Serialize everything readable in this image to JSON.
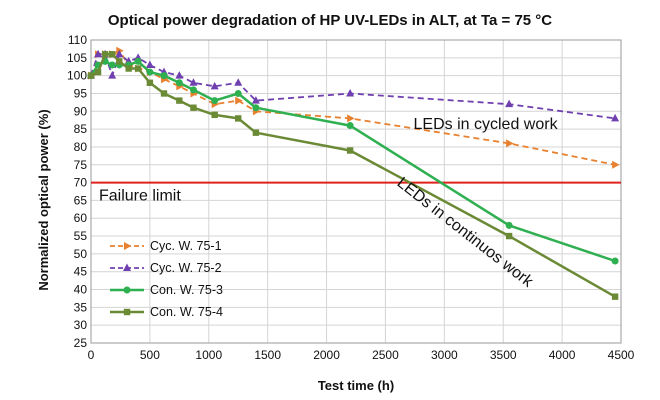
{
  "chart_data": {
    "type": "line",
    "title": "Optical power degradation of HP UV-LEDs in ALT, at Ta = 75 °C",
    "xlabel": "Test time (h)",
    "ylabel": "Normalized optical power (%)",
    "xlim": [
      0,
      4500
    ],
    "ylim": [
      25,
      110
    ],
    "xticks": [
      0,
      500,
      1000,
      1500,
      2000,
      2500,
      3000,
      3500,
      4000,
      4500
    ],
    "yticks": [
      25,
      30,
      35,
      40,
      45,
      50,
      55,
      60,
      65,
      70,
      75,
      80,
      85,
      90,
      95,
      100,
      105,
      110
    ],
    "grid": true,
    "legend_position": "lower-left",
    "series": [
      {
        "name": "Cyc. W. 75-1",
        "color": "#e8812f",
        "line_style": "dashed",
        "marker": "triangle-right",
        "x": [
          0,
          60,
          120,
          180,
          240,
          320,
          400,
          500,
          620,
          750,
          870,
          1050,
          1250,
          1400,
          2200,
          3550,
          4450
        ],
        "y": [
          100,
          106,
          106,
          106,
          107,
          103,
          102,
          101,
          99,
          97,
          95,
          92,
          93,
          90,
          88,
          81,
          75
        ]
      },
      {
        "name": "Cyc. W. 75-2",
        "color": "#7040b0",
        "line_style": "dashed",
        "marker": "triangle-up",
        "x": [
          0,
          60,
          120,
          180,
          240,
          320,
          400,
          500,
          620,
          750,
          870,
          1050,
          1250,
          1400,
          2200,
          3550,
          4450
        ],
        "y": [
          100,
          106,
          106,
          100,
          106,
          104,
          105,
          103,
          101,
          100,
          98,
          97,
          98,
          93,
          95,
          92,
          88
        ]
      },
      {
        "name": "Con. W. 75-3",
        "color": "#2fb050",
        "line_style": "solid",
        "marker": "circle",
        "x": [
          0,
          60,
          120,
          180,
          240,
          320,
          400,
          500,
          620,
          750,
          870,
          1050,
          1250,
          1400,
          2200,
          3550,
          4450
        ],
        "y": [
          100,
          103,
          104,
          103,
          103,
          103,
          104,
          101,
          100,
          98,
          96,
          93,
          95,
          91,
          86,
          58,
          48
        ]
      },
      {
        "name": "Con. W. 75-4",
        "color": "#6b8a35",
        "line_style": "solid",
        "marker": "square",
        "x": [
          0,
          60,
          120,
          180,
          240,
          320,
          400,
          500,
          620,
          750,
          870,
          1050,
          1250,
          1400,
          2200,
          3550,
          4450
        ],
        "y": [
          100,
          101,
          106,
          106,
          104,
          102,
          102,
          98,
          95,
          93,
          91,
          89,
          88,
          84,
          79,
          55,
          38
        ]
      }
    ],
    "reference_lines": [
      {
        "label": "Failure limit",
        "y": 70,
        "color": "#e0201c"
      }
    ],
    "annotations": [
      {
        "text": "LEDs in cycled work",
        "x": 3350,
        "y": 85,
        "rotation_deg": 0
      },
      {
        "text": "LEDs in continuos work",
        "x": 3150,
        "y": 55,
        "rotation_deg": 38
      }
    ]
  }
}
